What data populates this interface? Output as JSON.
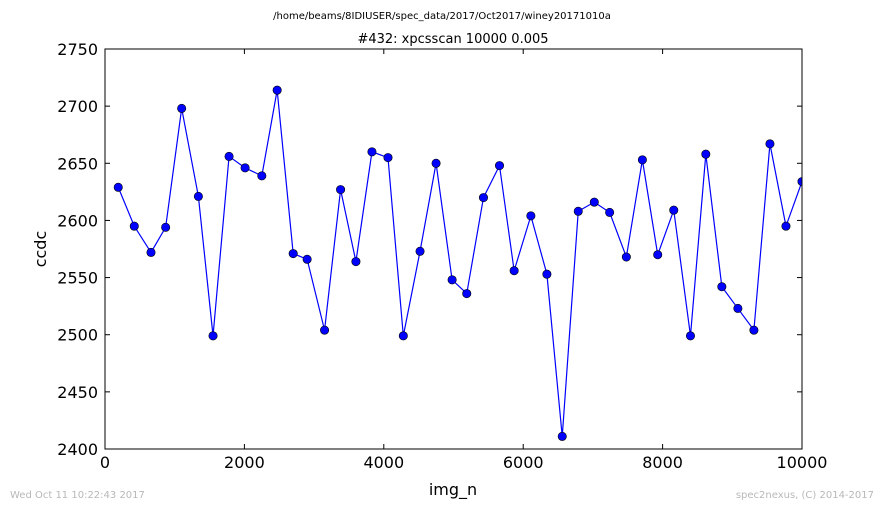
{
  "chart_data": {
    "type": "line",
    "suptitle": "/home/beams/8IDIUSER/spec_data/2017/Oct2017/winey20171010a",
    "title": "#432: xpcsscan 10000 0.005",
    "xlabel": "img_n",
    "ylabel": "ccdc",
    "xlim": [
      0,
      10000
    ],
    "ylim": [
      2400,
      2750
    ],
    "xticks": [
      0,
      2000,
      4000,
      6000,
      8000,
      10000
    ],
    "yticks": [
      2400,
      2450,
      2500,
      2550,
      2600,
      2650,
      2700,
      2750
    ],
    "grid": false,
    "legend": "none",
    "line_color": "#0000ff",
    "marker_color": "#0000ff",
    "series": [
      {
        "x": [
          190,
          420,
          660,
          870,
          1100,
          1340,
          1550,
          1780,
          2010,
          2250,
          2470,
          2700,
          2900,
          3150,
          3380,
          3600,
          3830,
          4060,
          4280,
          4520,
          4750,
          4980,
          5190,
          5430,
          5660,
          5870,
          6110,
          6340,
          6560,
          6790,
          7020,
          7240,
          7480,
          7710,
          7930,
          8160,
          8400,
          8620,
          8850,
          9080,
          9310,
          9540,
          9770,
          10000
        ],
        "y": [
          2629,
          2595,
          2572,
          2594,
          2698,
          2621,
          2499,
          2656,
          2646,
          2639,
          2714,
          2571,
          2566,
          2504,
          2627,
          2564,
          2660,
          2655,
          2499,
          2573,
          2650,
          2548,
          2536,
          2620,
          2648,
          2556,
          2604,
          2553,
          2411,
          2608,
          2616,
          2607,
          2568,
          2653,
          2570,
          2609,
          2499,
          2658,
          2542,
          2523,
          2504,
          2667,
          2595,
          2634
        ]
      }
    ]
  },
  "footer": {
    "timestamp": "Wed Oct 11 10:22:43 2017",
    "credit": "spec2nexus, (C) 2014-2017"
  }
}
